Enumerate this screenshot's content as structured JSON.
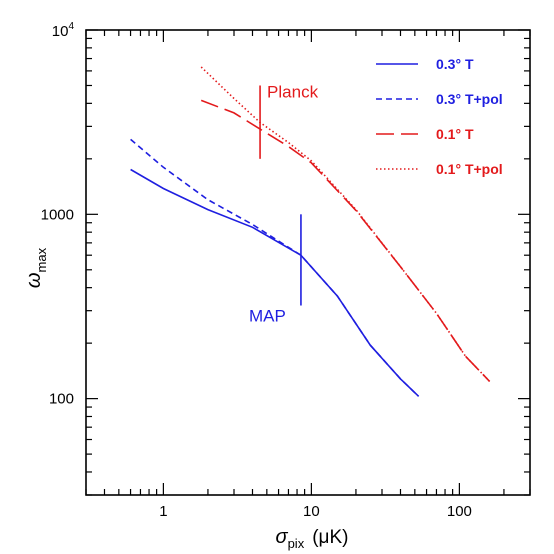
{
  "chart_data": {
    "type": "line",
    "x_scale": "log",
    "y_scale": "log",
    "xlim": [
      0.3,
      300
    ],
    "ylim": [
      30,
      10000
    ],
    "xlabel_symbol": "σ",
    "xlabel_sub": "pix",
    "xlabel_unit": "(μK)",
    "ylabel_symbol": "ω",
    "ylabel_sub": "max",
    "x_ticks": [
      {
        "value": 1,
        "label": "1"
      },
      {
        "value": 10,
        "label": "10"
      },
      {
        "value": 100,
        "label": "100"
      }
    ],
    "y_ticks": [
      {
        "value": 100,
        "label": "100"
      },
      {
        "value": 1000,
        "label": "1000"
      }
    ],
    "y_top_label_base": "10",
    "y_top_label_exp": "4",
    "grid": false,
    "legend_position": "top-right",
    "series": [
      {
        "name": "0.3° T",
        "color": "#1f1fe0",
        "dash": "solid",
        "x": [
          0.6,
          1,
          2,
          4,
          8.5,
          15,
          25,
          40,
          53
        ],
        "y": [
          1750,
          1380,
          1060,
          850,
          600,
          360,
          195,
          128,
          103
        ]
      },
      {
        "name": "0.3° T+pol",
        "color": "#1f1fe0",
        "dash": "short",
        "x": [
          0.6,
          1,
          2,
          4,
          8.5,
          15,
          25,
          40,
          53
        ],
        "y": [
          2550,
          1800,
          1200,
          880,
          600,
          360,
          195,
          128,
          103
        ]
      },
      {
        "name": "0.1° T",
        "color": "#e31a1c",
        "dash": "long",
        "x": [
          1.8,
          3,
          4.5,
          7,
          10,
          20,
          40,
          70,
          110,
          160
        ],
        "y": [
          4150,
          3550,
          2900,
          2330,
          1900,
          1050,
          520,
          290,
          170,
          124
        ]
      },
      {
        "name": "0.1° T+pol",
        "color": "#e31a1c",
        "dash": "dotted",
        "x": [
          1.8,
          3,
          4.5,
          7,
          10,
          20,
          40,
          70,
          110,
          160
        ],
        "y": [
          6300,
          4250,
          3150,
          2450,
          1950,
          1060,
          520,
          290,
          170,
          124
        ]
      }
    ],
    "annotations": [
      {
        "text": "Planck",
        "color": "#e31a1c",
        "marker_x": 4.5,
        "marker_y": [
          2000,
          5000
        ]
      },
      {
        "text": "MAP",
        "color": "#1f1fe0",
        "marker_x": 8.5,
        "marker_y": [
          320,
          1000
        ]
      }
    ]
  }
}
